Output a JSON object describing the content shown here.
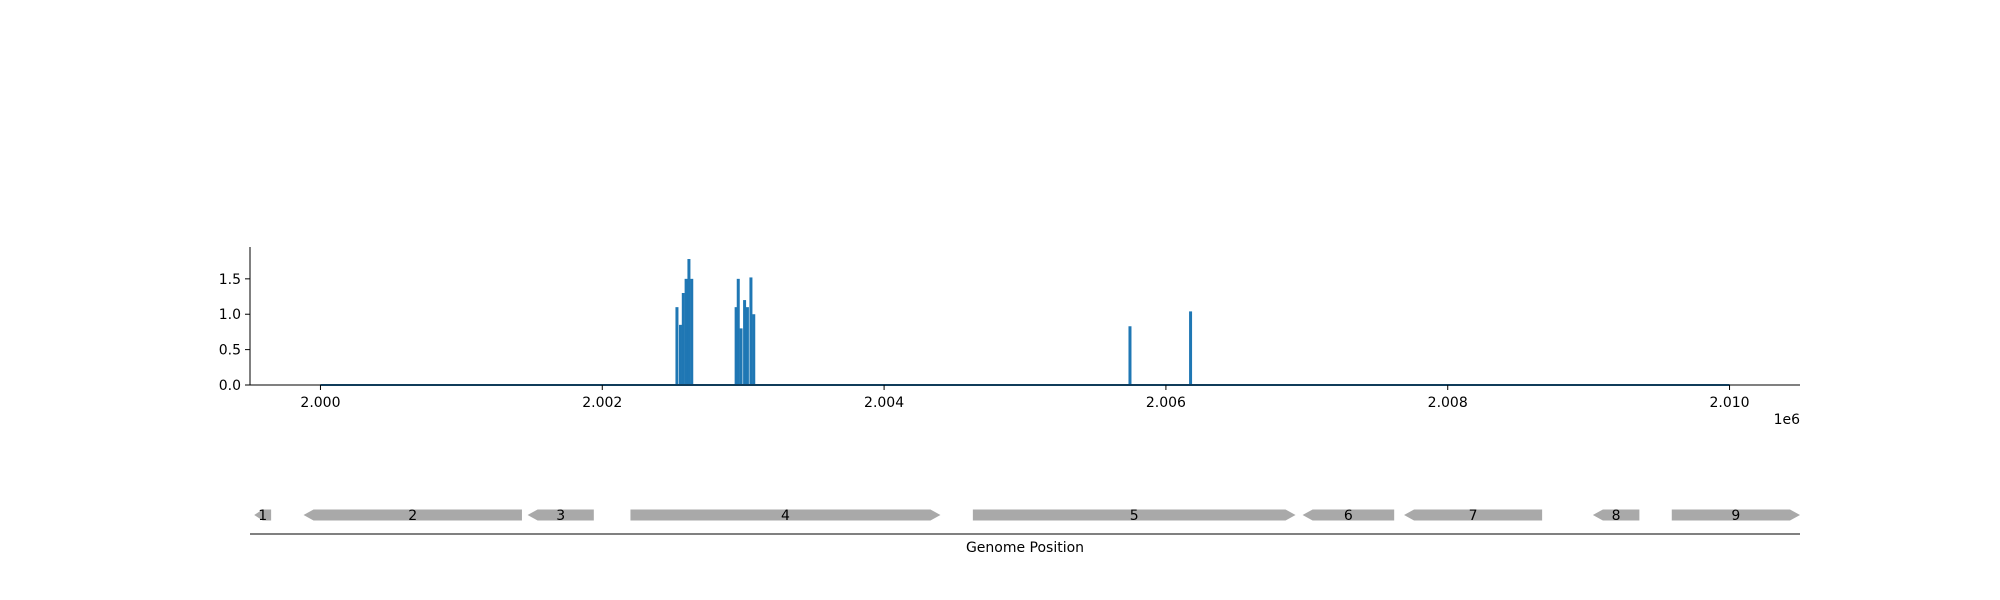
{
  "chart_data": [
    {
      "type": "bar",
      "title": "",
      "xlabel": "",
      "ylabel": "",
      "xlim": [
        1999500,
        2010500
      ],
      "ylim": [
        0,
        1.95
      ],
      "x_ticks": [
        2000000,
        2002000,
        2004000,
        2006000,
        2008000,
        2010000
      ],
      "x_tick_labels": [
        "2.000",
        "2.002",
        "2.004",
        "2.006",
        "2.008",
        "2.010"
      ],
      "x_offset_label": "1e6",
      "y_ticks": [
        0.0,
        0.5,
        1.0,
        1.5
      ],
      "y_tick_labels": [
        "0.0",
        "0.5",
        "1.0",
        "1.5"
      ],
      "baseline_range": [
        2000000,
        2010000
      ],
      "bar_color": "#1f77b4",
      "grid": false,
      "spines": "left-bottom",
      "series": [
        {
          "x": [
            2002530,
            2002555,
            2002575,
            2002595,
            2002615,
            2002635,
            2002950,
            2002965,
            2002985,
            2003010,
            2003030,
            2003055,
            2003075,
            2005745,
            2006175
          ],
          "values": [
            1.1,
            0.85,
            1.3,
            1.5,
            1.78,
            1.5,
            1.1,
            1.5,
            0.8,
            1.2,
            1.1,
            1.52,
            1.0,
            0.83,
            1.04
          ]
        }
      ]
    },
    {
      "type": "gene-track",
      "title": "",
      "xlabel": "Genome Position",
      "xlim": [
        1999500,
        2010500
      ],
      "feature_color": "#a9a9a9",
      "genes": [
        {
          "label": "1",
          "start": 1999530,
          "end": 1999650,
          "strand": "-"
        },
        {
          "label": "2",
          "start": 1999880,
          "end": 2001430,
          "strand": "-"
        },
        {
          "label": "3",
          "start": 2001470,
          "end": 2001940,
          "strand": "-"
        },
        {
          "label": "4",
          "start": 2002200,
          "end": 2004400,
          "strand": "+"
        },
        {
          "label": "5",
          "start": 2004630,
          "end": 2006920,
          "strand": "+"
        },
        {
          "label": "6",
          "start": 2006970,
          "end": 2007620,
          "strand": "-"
        },
        {
          "label": "7",
          "start": 2007690,
          "end": 2008670,
          "strand": "-"
        },
        {
          "label": "8",
          "start": 2009030,
          "end": 2009360,
          "strand": "-"
        },
        {
          "label": "9",
          "start": 2009590,
          "end": 2010500,
          "strand": "+"
        }
      ]
    }
  ]
}
